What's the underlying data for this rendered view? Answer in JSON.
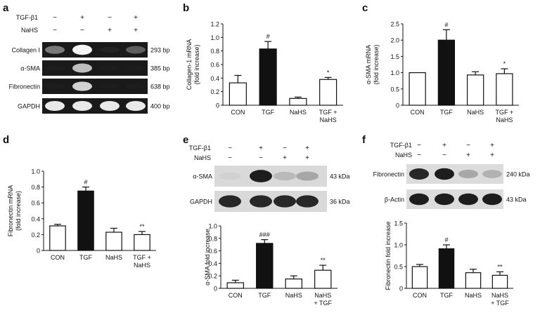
{
  "panel_labels": [
    "a",
    "b",
    "c",
    "d",
    "e",
    "f"
  ],
  "gel_a": {
    "treatments": [
      {
        "name": "TGF-β1",
        "signs": [
          "−",
          "+",
          "−",
          "+"
        ]
      },
      {
        "name": "NaHS",
        "signs": [
          "−",
          "−",
          "+",
          "+"
        ]
      }
    ],
    "bands": [
      {
        "label": "Collagen I",
        "size": "293 bp",
        "intensity": [
          0.55,
          0.95,
          0.12,
          0.45
        ]
      },
      {
        "label": "α-SMA",
        "size": "385 bp",
        "intensity": [
          0.05,
          0.75,
          0.05,
          0.05
        ]
      },
      {
        "label": "Fibronectin",
        "size": "638 bp",
        "intensity": [
          0.05,
          0.8,
          0.05,
          0.05
        ]
      },
      {
        "label": "GAPDH",
        "size": "400 bp",
        "intensity": [
          0.9,
          0.9,
          0.9,
          0.9
        ]
      }
    ]
  },
  "blot_e": {
    "treatments": [
      {
        "name": "TGF-β1",
        "signs": [
          "−",
          "+",
          "−",
          "+"
        ]
      },
      {
        "name": "NaHS",
        "signs": [
          "−",
          "−",
          "+",
          "+"
        ]
      }
    ],
    "bands": [
      {
        "label": "α-SMA",
        "size": "43 kDa",
        "intensity": [
          0.05,
          0.9,
          0.25,
          0.35
        ]
      },
      {
        "label": "GAPDH",
        "size": "36 kDa",
        "intensity": [
          0.85,
          0.85,
          0.85,
          0.85
        ]
      }
    ]
  },
  "blot_f": {
    "treatments": [
      {
        "name": "TGF-β1",
        "signs": [
          "−",
          "+",
          "−",
          "+"
        ]
      },
      {
        "name": "NaHS",
        "signs": [
          "−",
          "−",
          "+",
          "+"
        ]
      }
    ],
    "bands": [
      {
        "label": "Fibronectin",
        "size": "240 kDa",
        "intensity": [
          0.85,
          0.9,
          0.35,
          0.3
        ]
      },
      {
        "label": "β-Actin",
        "size": "43 kDa",
        "intensity": [
          0.9,
          0.9,
          0.9,
          0.9
        ]
      }
    ]
  },
  "chart_data": [
    {
      "id": "b",
      "type": "bar",
      "categories": [
        "CON",
        "TGF",
        "NaHS",
        "TGF +\nNaHS"
      ],
      "values": [
        0.33,
        0.83,
        0.1,
        0.38
      ],
      "errors": [
        0.11,
        0.11,
        0.02,
        0.03
      ],
      "fills": [
        "open",
        "filled",
        "open",
        "open"
      ],
      "marks": [
        "",
        "#",
        "",
        "*"
      ],
      "ylabel": "Collagen-1 mRNA\n(fold increase)",
      "ylim": [
        0,
        1.2
      ],
      "yticks": [
        "0",
        "0.2",
        "0.4",
        "0.6",
        "0.8",
        "1.0",
        "1.2"
      ]
    },
    {
      "id": "c",
      "type": "bar",
      "categories": [
        "CON",
        "TGF",
        "NaHS",
        "TGF +\nNaHS"
      ],
      "values": [
        1.0,
        2.0,
        0.93,
        0.97
      ],
      "errors": [
        0,
        0.32,
        0.1,
        0.15
      ],
      "fills": [
        "open",
        "filled",
        "open",
        "open"
      ],
      "marks": [
        "",
        "#",
        "",
        "*"
      ],
      "ylabel": "α-SMA mRNA\n(fold increase)",
      "ylim": [
        0,
        2.5
      ],
      "yticks": [
        "0",
        "0.5",
        "1.0",
        "1.5",
        "2.0",
        "2.5"
      ]
    },
    {
      "id": "d",
      "type": "bar",
      "categories": [
        "CON",
        "TGF",
        "NaHS",
        "TGF +\nNaHS"
      ],
      "values": [
        0.31,
        0.75,
        0.23,
        0.2
      ],
      "errors": [
        0.02,
        0.05,
        0.05,
        0.04
      ],
      "fills": [
        "open",
        "filled",
        "open",
        "open"
      ],
      "marks": [
        "",
        "#",
        "",
        "**"
      ],
      "ylabel": "Fibronectin mRNA\n(fold increase)",
      "ylim": [
        0,
        1.0
      ],
      "yticks": [
        "0",
        "0.2",
        "0.4",
        "0.6",
        "0.8",
        "1.0"
      ]
    },
    {
      "id": "e",
      "type": "bar",
      "categories": [
        "CON",
        "TGF",
        "NaHS",
        "NaHS\n+ TGF"
      ],
      "values": [
        0.09,
        0.72,
        0.15,
        0.29
      ],
      "errors": [
        0.04,
        0.06,
        0.05,
        0.08
      ],
      "fills": [
        "open",
        "filled",
        "open",
        "open"
      ],
      "marks": [
        "",
        "###",
        "",
        "**"
      ],
      "ylabel": "α-SMA fold increase",
      "ylim": [
        0,
        1.0
      ],
      "yticks": [
        "0",
        "0.2",
        "0.4",
        "0.6",
        "0.8",
        "1.0"
      ]
    },
    {
      "id": "f",
      "type": "bar",
      "categories": [
        "CON",
        "TGF",
        "NaHS",
        "NaHS\n+ TGF"
      ],
      "values": [
        0.5,
        0.91,
        0.36,
        0.3
      ],
      "errors": [
        0.05,
        0.09,
        0.08,
        0.08
      ],
      "fills": [
        "open",
        "filled",
        "open",
        "open"
      ],
      "marks": [
        "",
        "#",
        "",
        "**"
      ],
      "ylabel": "Fibronectin fold increase",
      "ylim": [
        0,
        1.5
      ],
      "yticks": [
        "0",
        "0.5",
        "1.0",
        "1.5"
      ]
    }
  ]
}
